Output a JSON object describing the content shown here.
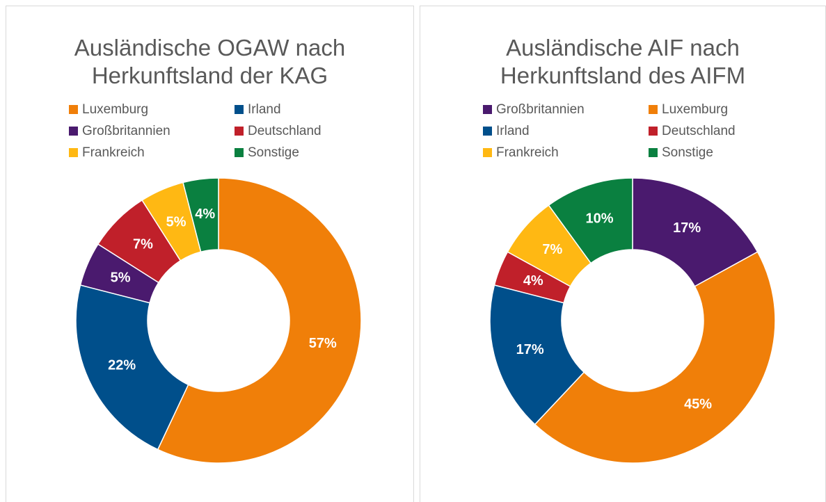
{
  "chart_data": [
    {
      "type": "donut",
      "title": "Ausländische OGAW nach Herkunftsland der KAG",
      "categories": [
        "Luxemburg",
        "Irland",
        "Großbritannien",
        "Deutschland",
        "Frankreich",
        "Sonstige"
      ],
      "values": [
        57,
        22,
        5,
        7,
        5,
        4
      ],
      "value_labels": [
        "57%",
        "22%",
        "5%",
        "7%",
        "5%",
        "4%"
      ],
      "colors": [
        "#f07f09",
        "#004f8b",
        "#4a1a6e",
        "#c0202a",
        "#ffb813",
        "#0a8040"
      ]
    },
    {
      "type": "donut",
      "title": "Ausländische AIF nach Herkunftsland des AIFM",
      "categories": [
        "Großbritannien",
        "Luxemburg",
        "Irland",
        "Deutschland",
        "Frankreich",
        "Sonstige"
      ],
      "values": [
        17,
        45,
        17,
        4,
        7,
        10
      ],
      "value_labels": [
        "17%",
        "45%",
        "17%",
        "4%",
        "7%",
        "10%"
      ],
      "colors": [
        "#4a1a6e",
        "#f07f09",
        "#004f8b",
        "#c0202a",
        "#ffb813",
        "#0a8040"
      ]
    }
  ]
}
